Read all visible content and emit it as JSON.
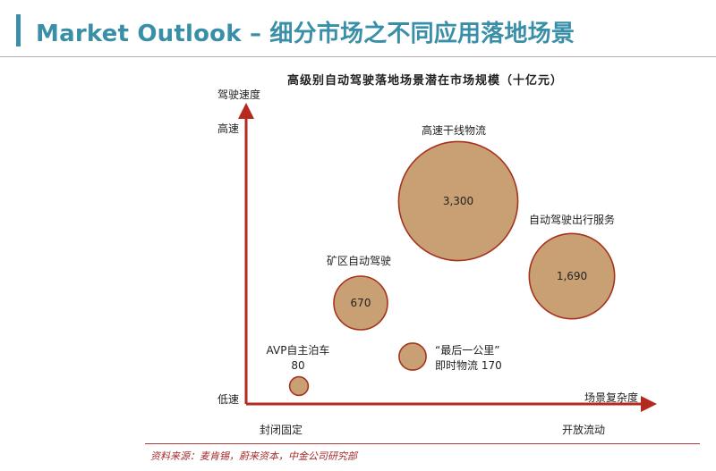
{
  "page": {
    "title": "Market Outlook – 细分市场之不同应用落地场景",
    "source": "资料来源：麦肯锡，蔚来资本，中金公司研究部"
  },
  "colors": {
    "accent": "#3a8fa8",
    "bubble_fill": "#c9a073",
    "bubble_stroke": "#a5331e",
    "axis": "#b52a1f",
    "source_text": "#a52a2a"
  },
  "chart_data": {
    "type": "scatter",
    "title": "高级别自动驾驶落地场景潜在市场规模（十亿元）",
    "ylabel": "驾驶速度",
    "xlabel": "场景复杂度",
    "y_ticks": [
      "高速",
      "低速"
    ],
    "x_ticks": [
      "封闭固定",
      "开放流动"
    ],
    "points": [
      {
        "name": "AVP自主泊车",
        "value": 80,
        "value_label": "80"
      },
      {
        "name": "矿区自动驾驶",
        "value": 670,
        "value_label": "670"
      },
      {
        "name": "“最后一公里”\n即时物流",
        "value": 170,
        "value_label": "170"
      },
      {
        "name": "高速干线物流",
        "value": 3300,
        "value_label": "3,300"
      },
      {
        "name": "自动驾驶出行服务",
        "value": 1690,
        "value_label": "1,690"
      }
    ],
    "grid": false,
    "legend": "none"
  }
}
